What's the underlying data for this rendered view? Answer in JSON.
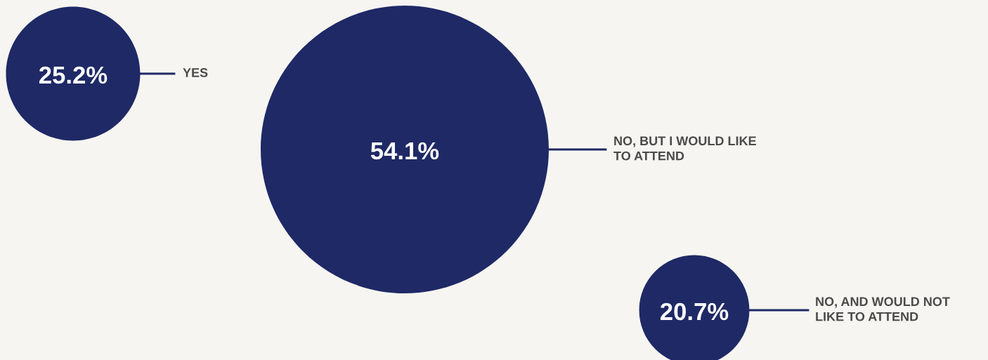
{
  "chart_data": {
    "type": "other",
    "categories": [
      "YES",
      "NO, BUT I WOULD LIKE\nTO ATTEND",
      "NO, AND WOULD NOT\nLIKE TO ATTEND"
    ],
    "values": [
      25.2,
      54.1,
      20.7
    ],
    "value_labels": [
      "25.2%",
      "54.1%",
      "20.7%"
    ],
    "color": "#1f2966",
    "data_labels": true
  }
}
